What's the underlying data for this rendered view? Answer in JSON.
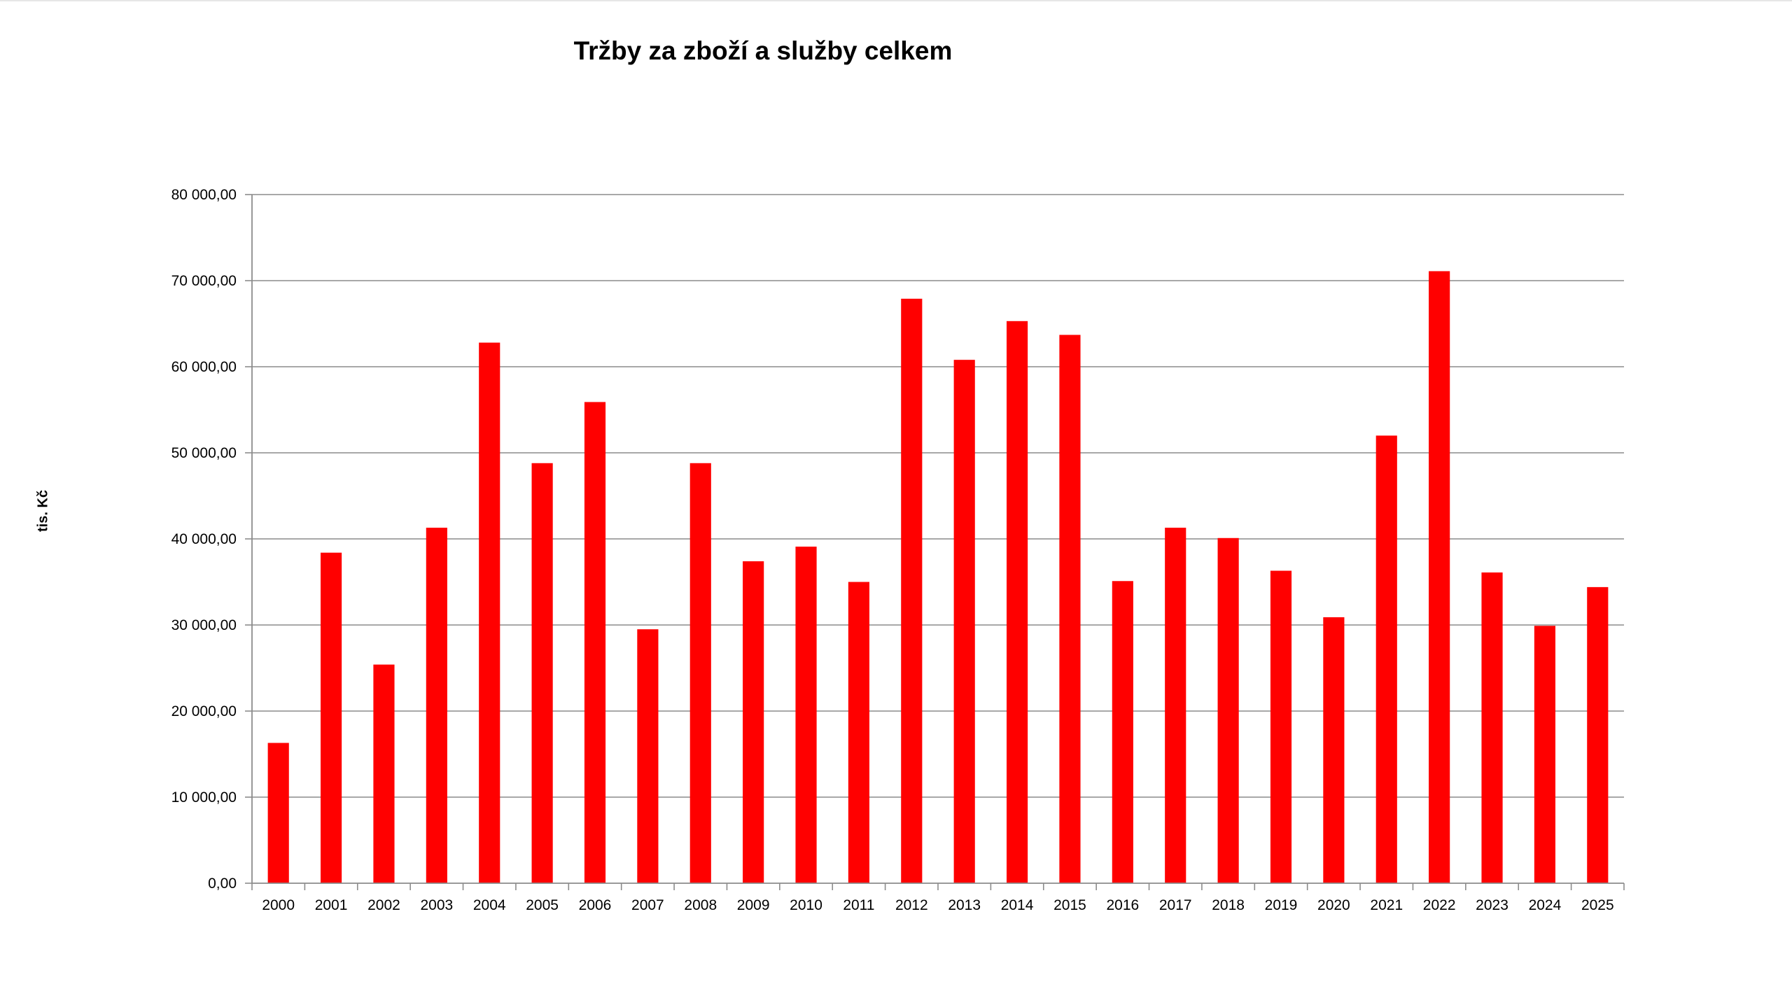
{
  "chart_data": {
    "type": "bar",
    "title": "Tržby za zboží a služby celkem",
    "xlabel": "",
    "ylabel": "tis. Kč",
    "categories": [
      "2000",
      "2001",
      "2002",
      "2003",
      "2004",
      "2005",
      "2006",
      "2007",
      "2008",
      "2009",
      "2010",
      "2011",
      "2012",
      "2013",
      "2014",
      "2015",
      "2016",
      "2017",
      "2018",
      "2019",
      "2020",
      "2021",
      "2022",
      "2023",
      "2024",
      "2025"
    ],
    "values": [
      16300,
      38400,
      25400,
      41300,
      62800,
      48800,
      55900,
      29500,
      48800,
      37400,
      39100,
      35000,
      67900,
      60800,
      65300,
      63700,
      35100,
      41300,
      40100,
      36300,
      30900,
      52000,
      71100,
      36100,
      29900,
      34400
    ],
    "ylim": [
      0,
      80000
    ],
    "yticks": [
      0,
      10000,
      20000,
      30000,
      40000,
      50000,
      60000,
      70000,
      80000
    ],
    "ytick_labels": [
      "0,00",
      "10 000,00",
      "20 000,00",
      "30 000,00",
      "40 000,00",
      "50 000,00",
      "60 000,00",
      "70 000,00",
      "80 000,00"
    ],
    "grid": true,
    "legend": "none",
    "bar_color": "#ff0000"
  }
}
